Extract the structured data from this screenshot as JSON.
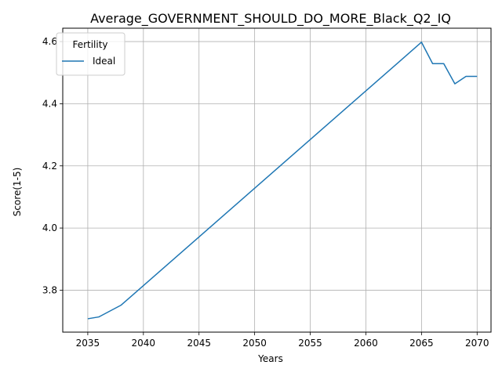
{
  "chart_data": {
    "type": "line",
    "title": "Average_GOVERNMENT_SHOULD_DO_MORE_Black_Q2_IQ",
    "xlabel": "Years",
    "ylabel": "Score(1-5)",
    "xlim": [
      2032.75,
      2071.25
    ],
    "ylim": [
      3.665,
      4.643
    ],
    "xticks": [
      2035,
      2040,
      2045,
      2050,
      2055,
      2060,
      2065,
      2070
    ],
    "yticks": [
      3.8,
      4.0,
      4.2,
      4.4,
      4.6
    ],
    "ytick_labels": [
      "3.8",
      "4.0",
      "4.2",
      "4.4",
      "4.6"
    ],
    "grid": true,
    "legend": {
      "title": "Fertility",
      "placement": "top-left"
    },
    "series": [
      {
        "name": "Ideal",
        "color": "#1f77b4",
        "x": [
          2035,
          2036,
          2038,
          2065,
          2066,
          2067,
          2068,
          2069,
          2070
        ],
        "y": [
          3.708,
          3.714,
          3.752,
          4.598,
          4.529,
          4.529,
          4.464,
          4.488,
          4.488
        ]
      }
    ]
  }
}
